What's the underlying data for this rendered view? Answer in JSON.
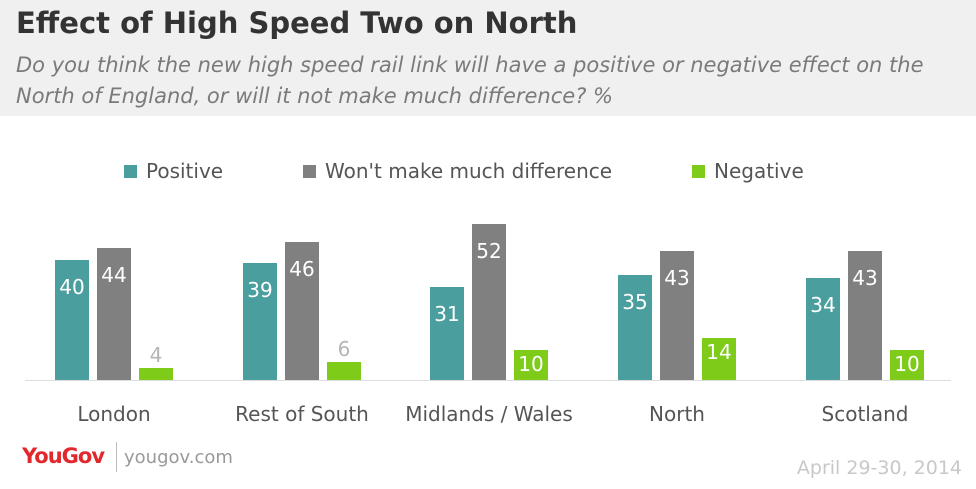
{
  "header": {
    "title": "Effect of High Speed Two on North",
    "subtitle": "Do you think the new high speed rail link will have a positive or negative effect on the North of England, or will it not make much difference? %"
  },
  "colors": {
    "positive": "#4a9e9e",
    "difference": "#808080",
    "negative": "#7ecb1a"
  },
  "chart_data": {
    "type": "bar",
    "categories": [
      "London",
      "Rest of South",
      "Midlands / Wales",
      "North",
      "Scotland"
    ],
    "series": [
      {
        "name": "Positive",
        "values": [
          40,
          39,
          31,
          35,
          34
        ]
      },
      {
        "name": "Won't make much difference",
        "values": [
          44,
          46,
          52,
          43,
          43
        ]
      },
      {
        "name": "Negative",
        "values": [
          4,
          6,
          10,
          14,
          10
        ]
      }
    ],
    "title": "Effect of High Speed Two on North",
    "xlabel": "",
    "ylabel": "",
    "ylim": [
      0,
      60
    ],
    "grid": false,
    "legend_position": "top"
  },
  "footer": {
    "logo": "YouGov",
    "url": "yougov.com",
    "date": "April 29-30, 2014"
  }
}
